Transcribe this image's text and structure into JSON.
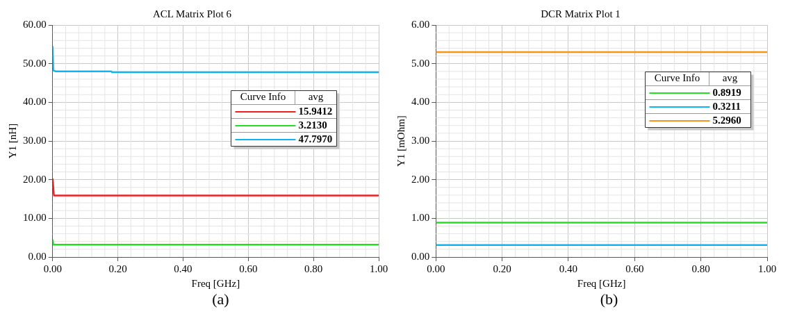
{
  "chart_data": [
    {
      "type": "line",
      "title": "ACL Matrix Plot 6",
      "xlabel": "Freq [GHz]",
      "ylabel": "Y1 [nH]",
      "legend_title": "Curve Info",
      "annotations": [
        "avg",
        "15.9412",
        "3.2130",
        "47.7970",
        "(a)"
      ],
      "xlim": [
        0,
        1
      ],
      "ylim": [
        0,
        60
      ],
      "xticks": [
        {
          "value": 0,
          "label": "0.00"
        },
        {
          "value": 0.2,
          "label": "0.20"
        },
        {
          "value": 0.4,
          "label": "0.40"
        },
        {
          "value": 0.6,
          "label": "0.60"
        },
        {
          "value": 0.8,
          "label": "0.80"
        },
        {
          "value": 1,
          "label": "1.00"
        }
      ],
      "yticks": [
        {
          "value": 0,
          "label": "0.00"
        },
        {
          "value": 10,
          "label": "10.00"
        },
        {
          "value": 20,
          "label": "20.00"
        },
        {
          "value": 30,
          "label": "30.00"
        },
        {
          "value": 40,
          "label": "40.00"
        },
        {
          "value": 50,
          "label": "50.00"
        },
        {
          "value": 60,
          "label": "60.00"
        }
      ],
      "grid": true,
      "marker": "none",
      "series": [
        {
          "color": "#f02020",
          "x": [
            0,
            0.001,
            0.004,
            1
          ],
          "values": [
            20.3,
            19.2,
            15.9,
            15.9
          ]
        },
        {
          "color": "#20e020",
          "x": [
            0,
            0.002,
            1
          ],
          "values": [
            4.5,
            3.2,
            3.2
          ]
        },
        {
          "color": "#10b4f0",
          "x": [
            0,
            0.002,
            0.003,
            0.01,
            0.18,
            0.182,
            1
          ],
          "values": [
            54.5,
            48.3,
            48.2,
            48.0,
            48.0,
            47.8,
            47.8
          ]
        }
      ]
    },
    {
      "type": "line",
      "title": "DCR Matrix Plot 1",
      "xlabel": "Freq [GHz]",
      "ylabel": "Y1 [mOhm]",
      "legend_title": "Curve Info",
      "annotations": [
        "avg",
        "0.8919",
        "0.3211",
        "5.2960",
        "(b)"
      ],
      "xlim": [
        0,
        1
      ],
      "ylim": [
        0,
        6
      ],
      "xticks": [
        {
          "value": 0,
          "label": "0.00"
        },
        {
          "value": 0.2,
          "label": "0.20"
        },
        {
          "value": 0.4,
          "label": "0.40"
        },
        {
          "value": 0.6,
          "label": "0.60"
        },
        {
          "value": 0.8,
          "label": "0.80"
        },
        {
          "value": 1,
          "label": "1.00"
        }
      ],
      "yticks": [
        {
          "value": 0,
          "label": "0.00"
        },
        {
          "value": 1,
          "label": "1.00"
        },
        {
          "value": 2,
          "label": "2.00"
        },
        {
          "value": 3,
          "label": "3.00"
        },
        {
          "value": 4,
          "label": "4.00"
        },
        {
          "value": 5,
          "label": "5.00"
        },
        {
          "value": 6,
          "label": "6.00"
        }
      ],
      "grid": true,
      "marker": "none",
      "series": [
        {
          "color": "#20e020",
          "x": [
            0,
            1
          ],
          "values": [
            0.89,
            0.89
          ]
        },
        {
          "color": "#10b4f0",
          "x": [
            0,
            1
          ],
          "values": [
            0.31,
            0.31
          ]
        },
        {
          "color": "#f7941d",
          "x": [
            0,
            1
          ],
          "values": [
            5.3,
            5.3
          ]
        }
      ]
    }
  ]
}
